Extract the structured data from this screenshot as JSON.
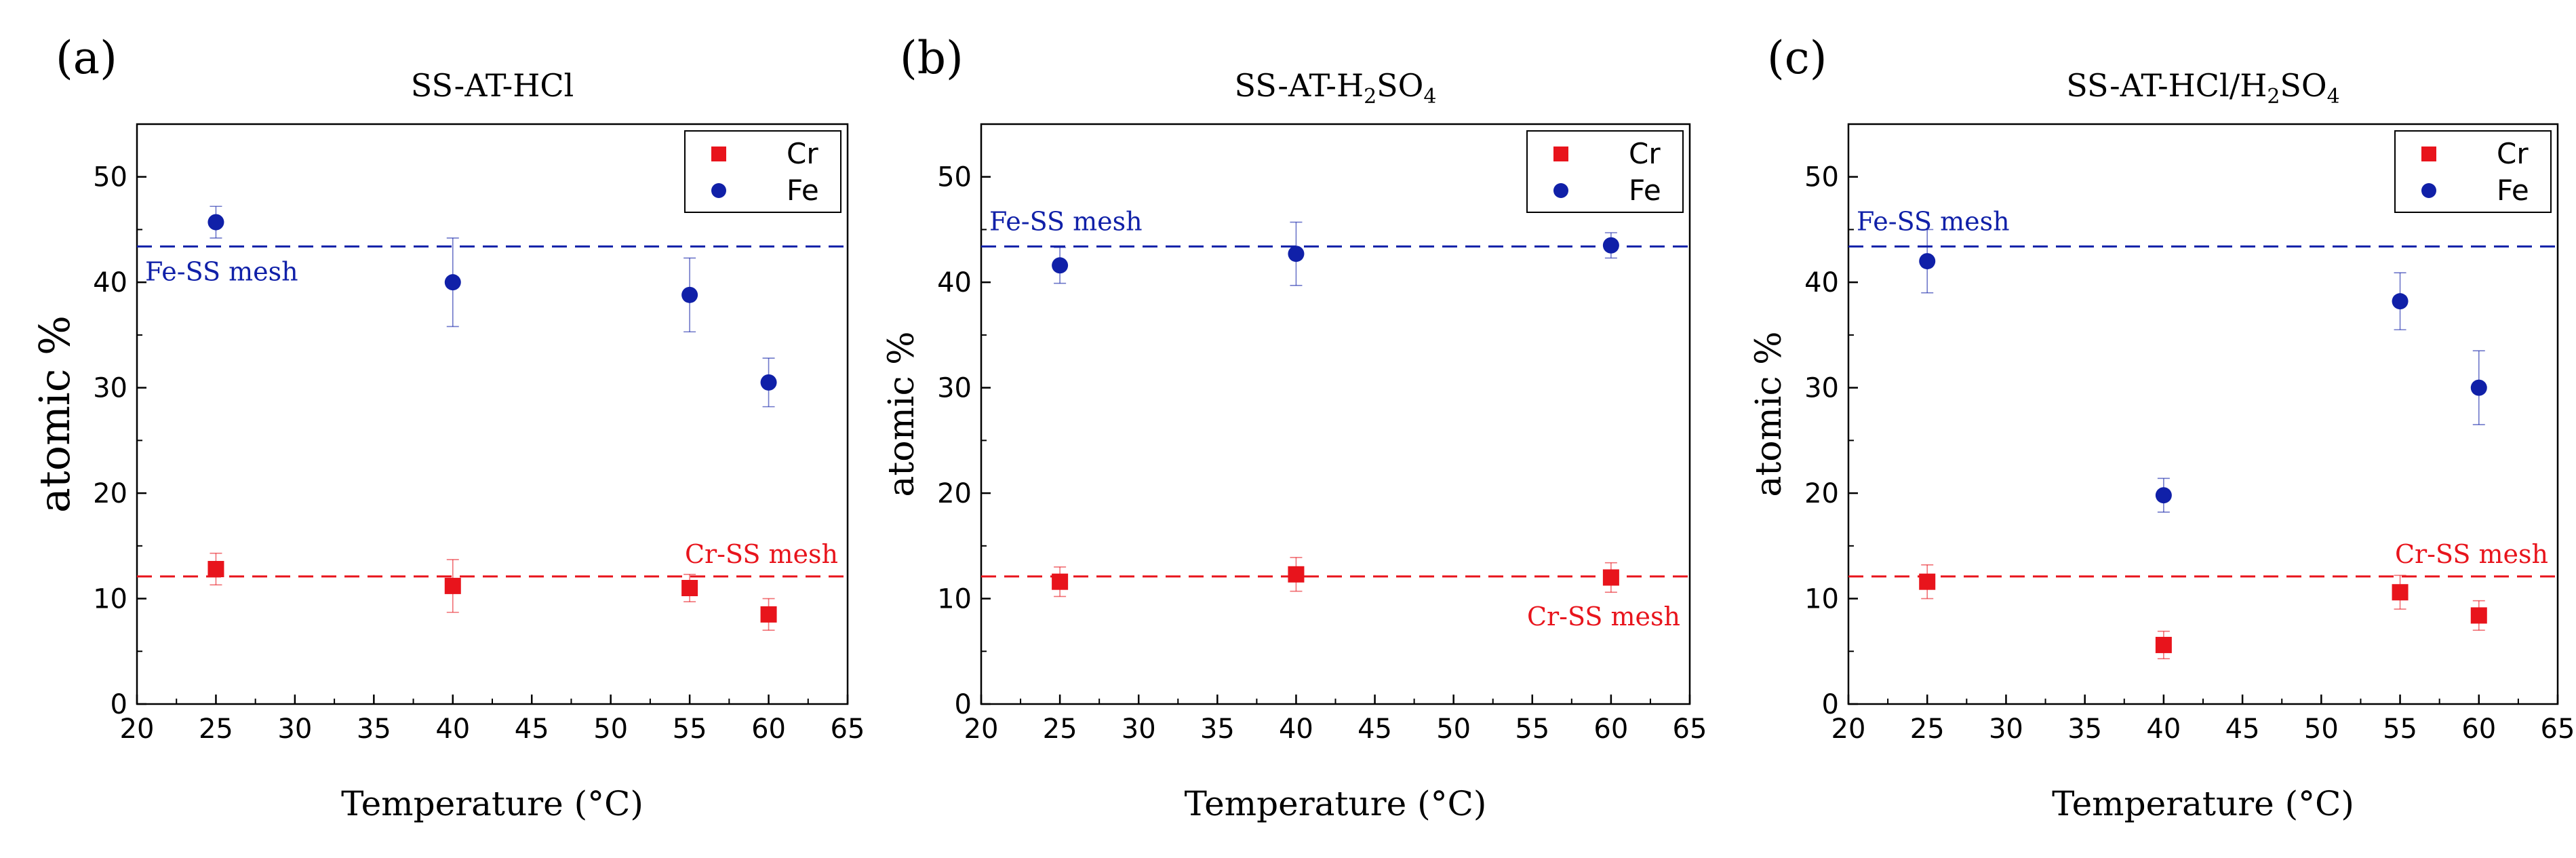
{
  "chart_data": [
    {
      "type": "scatter",
      "panel_label": "(a)",
      "title": "SS-AT-HCl",
      "title_sub": "",
      "title_suffix": "",
      "xlabel": "Temperature (°C)",
      "ylabel": "atomic %",
      "xlim": [
        20,
        65
      ],
      "ylim": [
        0,
        55
      ],
      "xticks": [
        20,
        25,
        30,
        35,
        40,
        45,
        50,
        55,
        60,
        65
      ],
      "yticks": [
        0,
        10,
        20,
        30,
        40,
        50
      ],
      "legend_position": "top-right",
      "series": [
        {
          "name": "Cr",
          "color": "#e8141c",
          "marker": "square",
          "x": [
            25,
            40,
            55,
            60
          ],
          "y": [
            12.8,
            11.2,
            11.0,
            8.5
          ],
          "err": [
            1.5,
            2.5,
            1.3,
            1.5
          ]
        },
        {
          "name": "Fe",
          "color": "#1020a8",
          "marker": "circle",
          "x": [
            25,
            40,
            55,
            60
          ],
          "y": [
            45.7,
            40.0,
            38.8,
            30.5
          ],
          "err": [
            1.5,
            4.2,
            3.5,
            2.3
          ]
        }
      ],
      "reference_lines": [
        {
          "label": "Fe-SS mesh",
          "y": 43.4,
          "color": "#1020a8",
          "label_place": "below-left"
        },
        {
          "label": "Cr-SS mesh",
          "y": 12.1,
          "color": "#e8141c",
          "label_place": "above-right"
        }
      ]
    },
    {
      "type": "scatter",
      "panel_label": "(b)",
      "title": "SS-AT-H",
      "title_sub": "2",
      "title_suffix": "SO",
      "title_sub2": "4",
      "xlabel": "Temperature (°C)",
      "ylabel": "atomic %",
      "xlim": [
        20,
        65
      ],
      "ylim": [
        0,
        55
      ],
      "xticks": [
        20,
        25,
        30,
        35,
        40,
        45,
        50,
        55,
        60,
        65
      ],
      "yticks": [
        0,
        10,
        20,
        30,
        40,
        50
      ],
      "legend_position": "top-right",
      "series": [
        {
          "name": "Cr",
          "color": "#e8141c",
          "marker": "square",
          "x": [
            25,
            40,
            60
          ],
          "y": [
            11.6,
            12.3,
            12.0
          ],
          "err": [
            1.4,
            1.6,
            1.4
          ]
        },
        {
          "name": "Fe",
          "color": "#1020a8",
          "marker": "circle",
          "x": [
            25,
            40,
            60
          ],
          "y": [
            41.6,
            42.7,
            43.5
          ],
          "err": [
            1.7,
            3.0,
            1.2
          ]
        }
      ],
      "reference_lines": [
        {
          "label": "Fe-SS mesh",
          "y": 43.4,
          "color": "#1020a8",
          "label_place": "above-left"
        },
        {
          "label": "Cr-SS mesh",
          "y": 12.1,
          "color": "#e8141c",
          "label_place": "below-right"
        }
      ]
    },
    {
      "type": "scatter",
      "panel_label": "(c)",
      "title": "SS-AT-HCl/H",
      "title_sub": "2",
      "title_suffix": "SO",
      "title_sub2": "4",
      "xlabel": "Temperature (°C)",
      "ylabel": "atomic %",
      "xlim": [
        20,
        65
      ],
      "ylim": [
        0,
        55
      ],
      "xticks": [
        20,
        25,
        30,
        35,
        40,
        45,
        50,
        55,
        60,
        65
      ],
      "yticks": [
        0,
        10,
        20,
        30,
        40,
        50
      ],
      "legend_position": "top-right",
      "series": [
        {
          "name": "Cr",
          "color": "#e8141c",
          "marker": "square",
          "x": [
            25,
            40,
            55,
            60
          ],
          "y": [
            11.6,
            5.6,
            10.6,
            8.4
          ],
          "err": [
            1.6,
            1.3,
            1.6,
            1.4
          ]
        },
        {
          "name": "Fe",
          "color": "#1020a8",
          "marker": "circle",
          "x": [
            25,
            40,
            55,
            60
          ],
          "y": [
            42.0,
            19.8,
            38.2,
            30.0
          ],
          "err": [
            3.0,
            1.6,
            2.7,
            3.5
          ]
        }
      ],
      "reference_lines": [
        {
          "label": "Fe-SS mesh",
          "y": 43.4,
          "color": "#1020a8",
          "label_place": "above-left"
        },
        {
          "label": "Cr-SS mesh",
          "y": 12.1,
          "color": "#e8141c",
          "label_place": "above-right"
        }
      ]
    }
  ]
}
